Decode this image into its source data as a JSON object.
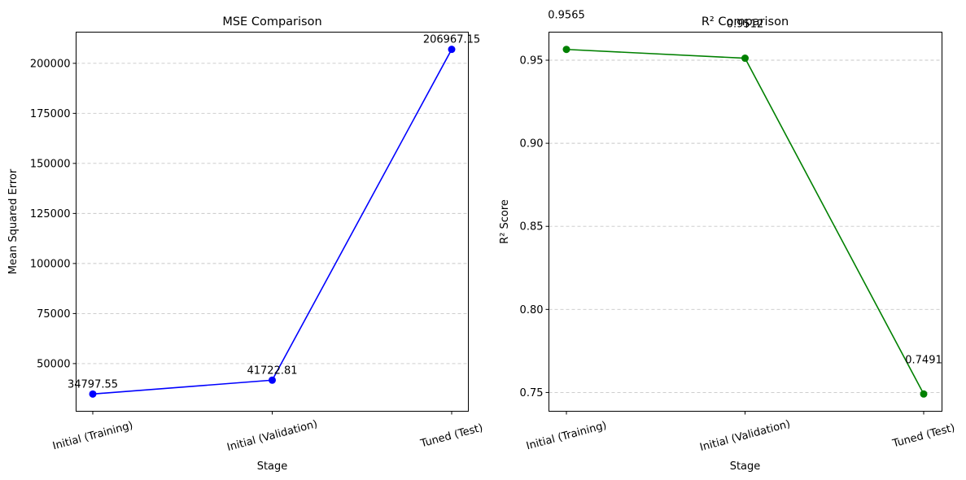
{
  "chart_data": [
    {
      "type": "line",
      "title": "MSE Comparison",
      "xlabel": "Stage",
      "ylabel": "Mean Squared Error",
      "categories": [
        "Initial (Training)",
        "Initial (Validation)",
        "Tuned (Test)"
      ],
      "values": [
        34797.55,
        41722.81,
        206967.15
      ],
      "data_labels": [
        "34797.55",
        "41722.81",
        "206967.15"
      ],
      "yticks": [
        50000,
        75000,
        100000,
        125000,
        150000,
        175000,
        200000
      ],
      "ytick_labels": [
        "50000",
        "75000",
        "100000",
        "125000",
        "150000",
        "175000",
        "200000"
      ],
      "ylim": [
        26188,
        215576
      ],
      "color": "#0000ff",
      "marker": "circle",
      "grid": "y-dashed"
    },
    {
      "type": "line",
      "title": "R² Comparison",
      "xlabel": "Stage",
      "ylabel": "R² Score",
      "categories": [
        "Initial (Training)",
        "Initial (Validation)",
        "Tuned (Test)"
      ],
      "values": [
        0.9565,
        0.9512,
        0.7491
      ],
      "data_labels": [
        "0.9565",
        "0.9512",
        "0.7491"
      ],
      "yticks": [
        0.75,
        0.8,
        0.85,
        0.9,
        0.95
      ],
      "ytick_labels": [
        "0.75",
        "0.80",
        "0.85",
        "0.90",
        "0.95"
      ],
      "ylim": [
        0.7387,
        0.9669
      ],
      "color": "#008000",
      "marker": "circle",
      "grid": "y-dashed"
    }
  ]
}
